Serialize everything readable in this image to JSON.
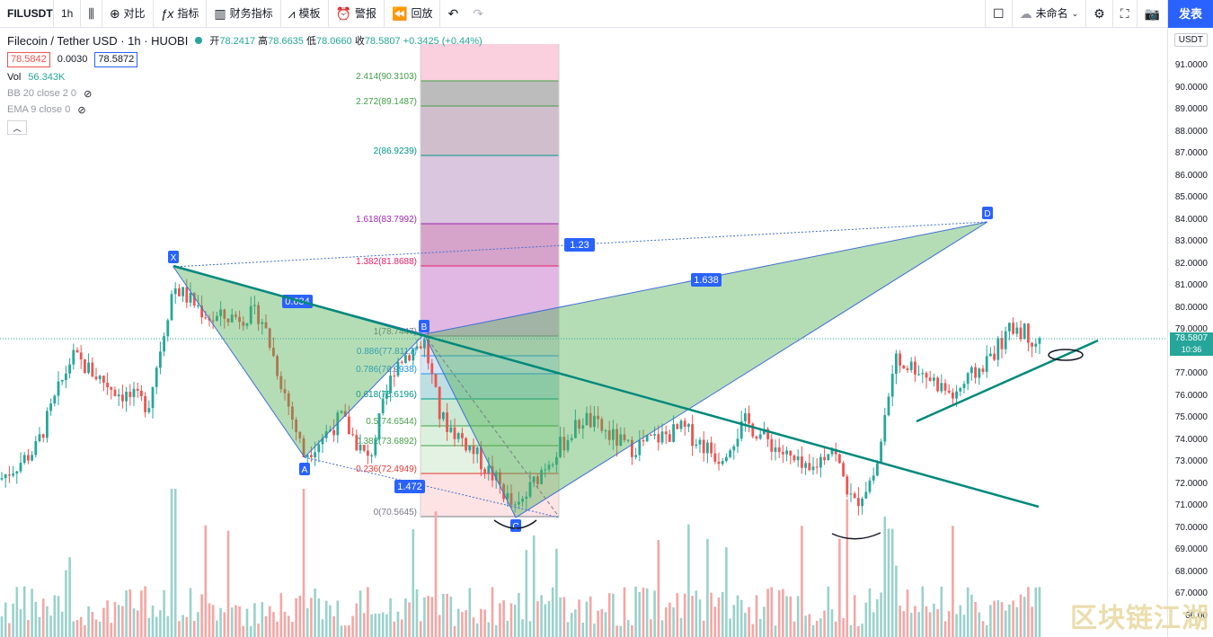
{
  "toolbar": {
    "symbol": "FILUSDT",
    "interval": "1h",
    "compare": "对比",
    "indicators": "指标",
    "financials": "财务指标",
    "templates": "模板",
    "alert": "警报",
    "replay": "回放",
    "layout_name": "未命名",
    "publish": "发表"
  },
  "legend": {
    "title": "Filecoin / Tether USD · 1h · HUOBI",
    "open_label": "开",
    "open": "78.2417",
    "high_label": "高",
    "high": "78.6635",
    "low_label": "低",
    "low": "78.0660",
    "close_label": "收",
    "close": "78.5807",
    "change": "+0.3425 (+0.44%)",
    "bid": "78.5842",
    "spread": "0.0030",
    "ask": "78.5872",
    "vol_label": "Vol",
    "vol": "56.343K",
    "bb": "BB 20 close 2 0",
    "ema": "EMA 9 close 0"
  },
  "axis": {
    "currency": "USDT",
    "ticks": [
      "91.0000",
      "90.0000",
      "89.0000",
      "88.0000",
      "87.0000",
      "86.0000",
      "85.0000",
      "84.0000",
      "83.0000",
      "82.0000",
      "81.0000",
      "80.0000",
      "79.0000",
      "78.0000",
      "77.0000",
      "76.0000",
      "75.0000",
      "74.0000",
      "73.0000",
      "72.0000",
      "71.0000",
      "70.0000",
      "69.0000",
      "68.0000",
      "67.0000",
      "66.00"
    ],
    "last_price": "78.5807",
    "countdown": "10:36"
  },
  "pattern": {
    "points": [
      "X",
      "A",
      "B",
      "C",
      "D"
    ],
    "ratios": [
      "0.634",
      "1.472",
      "1.23",
      "1.638"
    ]
  },
  "fib": [
    {
      "label": "2.414(90.3103)",
      "color": "#43a047"
    },
    {
      "label": "2.272(89.1487)",
      "color": "#43a047"
    },
    {
      "label": "2(86.9239)",
      "color": "#009688"
    },
    {
      "label": "1.618(83.7992)",
      "color": "#9c27b0"
    },
    {
      "label": "1.382(81.8688)",
      "color": "#e91e63"
    },
    {
      "label": "1(78.7447)",
      "color": "#787b86"
    },
    {
      "label": "0.886(77.8117)",
      "color": "#2196f3"
    },
    {
      "label": "0.786(76.9938)",
      "color": "#2196f3"
    },
    {
      "label": "0.618(75.6196)",
      "color": "#009688"
    },
    {
      "label": "0.5(74.6544)",
      "color": "#43a047"
    },
    {
      "label": "0.382(73.6892)",
      "color": "#43a047"
    },
    {
      "label": "0.236(72.4949)",
      "color": "#e53935"
    },
    {
      "label": "0(70.5645)",
      "color": "#787b86"
    }
  ],
  "watermark": "区块链江湖",
  "colors": {
    "up": "#26a69a",
    "down": "#ef5350",
    "accent": "#2962ff",
    "harmonic": "#4caf50",
    "trend": "#00897b"
  }
}
